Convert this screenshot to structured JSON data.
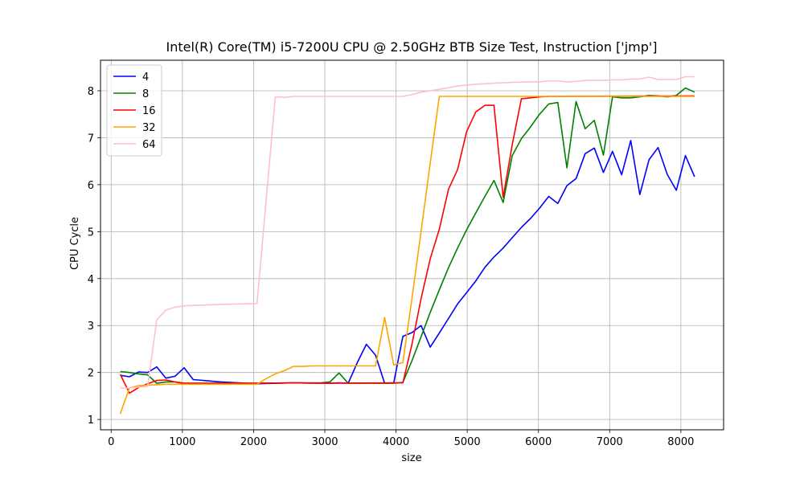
{
  "chart_data": {
    "type": "line",
    "title": "Intel(R) Core(TM) i5-7200U CPU @ 2.50GHz BTB Size Test, Instruction ['jmp']",
    "xlabel": "size",
    "ylabel": "CPU Cycle",
    "xlim": [
      -150,
      8600
    ],
    "ylim": [
      0.78,
      8.65
    ],
    "xticks": [
      0,
      1000,
      2000,
      3000,
      4000,
      5000,
      6000,
      7000,
      8000
    ],
    "yticks": [
      1,
      2,
      3,
      4,
      5,
      6,
      7,
      8
    ],
    "grid": true,
    "legend_position": "top-left",
    "series": [
      {
        "name": "4",
        "color": "#0000ff",
        "points": [
          [
            128,
            1.94
          ],
          [
            256,
            1.91
          ],
          [
            384,
            2.01
          ],
          [
            512,
            2.0
          ],
          [
            640,
            2.12
          ],
          [
            768,
            1.88
          ],
          [
            896,
            1.92
          ],
          [
            1024,
            2.1
          ],
          [
            1152,
            1.85
          ],
          [
            1536,
            1.8
          ],
          [
            2048,
            1.76
          ],
          [
            2560,
            1.78
          ],
          [
            3072,
            1.77
          ],
          [
            3200,
            1.78
          ],
          [
            3328,
            1.77
          ],
          [
            3456,
            2.21
          ],
          [
            3584,
            2.6
          ],
          [
            3712,
            2.37
          ],
          [
            3840,
            1.77
          ],
          [
            3968,
            1.78
          ],
          [
            4096,
            2.77
          ],
          [
            4224,
            2.85
          ],
          [
            4352,
            3.0
          ],
          [
            4480,
            2.54
          ],
          [
            4608,
            2.84
          ],
          [
            4736,
            3.15
          ],
          [
            4864,
            3.46
          ],
          [
            4992,
            3.7
          ],
          [
            5120,
            3.95
          ],
          [
            5248,
            4.24
          ],
          [
            5376,
            4.46
          ],
          [
            5504,
            4.65
          ],
          [
            5632,
            4.87
          ],
          [
            5760,
            5.09
          ],
          [
            5888,
            5.28
          ],
          [
            6016,
            5.5
          ],
          [
            6144,
            5.75
          ],
          [
            6272,
            5.6
          ],
          [
            6400,
            5.98
          ],
          [
            6528,
            6.13
          ],
          [
            6656,
            6.66
          ],
          [
            6784,
            6.78
          ],
          [
            6912,
            6.26
          ],
          [
            7040,
            6.71
          ],
          [
            7168,
            6.21
          ],
          [
            7296,
            6.94
          ],
          [
            7424,
            5.79
          ],
          [
            7552,
            6.53
          ],
          [
            7680,
            6.79
          ],
          [
            7808,
            6.22
          ],
          [
            7936,
            5.88
          ],
          [
            8064,
            6.62
          ],
          [
            8192,
            6.17
          ]
        ]
      },
      {
        "name": "8",
        "color": "#008000",
        "points": [
          [
            128,
            2.02
          ],
          [
            256,
            2.0
          ],
          [
            384,
            1.97
          ],
          [
            512,
            1.95
          ],
          [
            640,
            1.77
          ],
          [
            768,
            1.8
          ],
          [
            896,
            1.8
          ],
          [
            1024,
            1.77
          ],
          [
            2048,
            1.77
          ],
          [
            2560,
            1.78
          ],
          [
            2944,
            1.78
          ],
          [
            3072,
            1.8
          ],
          [
            3200,
            1.99
          ],
          [
            3328,
            1.77
          ],
          [
            3968,
            1.77
          ],
          [
            4096,
            1.79
          ],
          [
            4224,
            2.25
          ],
          [
            4352,
            2.76
          ],
          [
            4480,
            3.28
          ],
          [
            4608,
            3.76
          ],
          [
            4736,
            4.23
          ],
          [
            4864,
            4.65
          ],
          [
            4992,
            5.04
          ],
          [
            5120,
            5.4
          ],
          [
            5248,
            5.75
          ],
          [
            5376,
            6.09
          ],
          [
            5504,
            5.62
          ],
          [
            5632,
            6.62
          ],
          [
            5760,
            6.98
          ],
          [
            5888,
            7.23
          ],
          [
            6016,
            7.5
          ],
          [
            6144,
            7.72
          ],
          [
            6272,
            7.75
          ],
          [
            6400,
            6.36
          ],
          [
            6528,
            7.77
          ],
          [
            6656,
            7.19
          ],
          [
            6784,
            7.37
          ],
          [
            6912,
            6.63
          ],
          [
            7040,
            7.87
          ],
          [
            7168,
            7.85
          ],
          [
            7296,
            7.85
          ],
          [
            7424,
            7.87
          ],
          [
            7552,
            7.9
          ],
          [
            7680,
            7.89
          ],
          [
            7808,
            7.87
          ],
          [
            7936,
            7.9
          ],
          [
            8064,
            8.06
          ],
          [
            8192,
            7.97
          ]
        ]
      },
      {
        "name": "16",
        "color": "#ff0000",
        "points": [
          [
            128,
            1.96
          ],
          [
            256,
            1.56
          ],
          [
            384,
            1.68
          ],
          [
            512,
            1.76
          ],
          [
            640,
            1.83
          ],
          [
            768,
            1.84
          ],
          [
            896,
            1.8
          ],
          [
            1024,
            1.77
          ],
          [
            2048,
            1.77
          ],
          [
            2560,
            1.78
          ],
          [
            3072,
            1.77
          ],
          [
            3968,
            1.78
          ],
          [
            4096,
            1.78
          ],
          [
            4224,
            2.6
          ],
          [
            4352,
            3.57
          ],
          [
            4480,
            4.42
          ],
          [
            4608,
            5.05
          ],
          [
            4736,
            5.9
          ],
          [
            4864,
            6.32
          ],
          [
            4992,
            7.13
          ],
          [
            5120,
            7.55
          ],
          [
            5248,
            7.69
          ],
          [
            5376,
            7.69
          ],
          [
            5504,
            5.73
          ],
          [
            5632,
            6.85
          ],
          [
            5760,
            7.83
          ],
          [
            5888,
            7.85
          ],
          [
            6016,
            7.87
          ],
          [
            6144,
            7.88
          ],
          [
            6272,
            7.88
          ],
          [
            8192,
            7.89
          ]
        ]
      },
      {
        "name": "32",
        "color": "#ffa500",
        "points": [
          [
            128,
            1.12
          ],
          [
            256,
            1.67
          ],
          [
            384,
            1.72
          ],
          [
            512,
            1.73
          ],
          [
            640,
            1.74
          ],
          [
            768,
            1.75
          ],
          [
            1024,
            1.75
          ],
          [
            2048,
            1.75
          ],
          [
            2176,
            1.87
          ],
          [
            2304,
            1.97
          ],
          [
            2432,
            2.04
          ],
          [
            2560,
            2.13
          ],
          [
            2688,
            2.13
          ],
          [
            2816,
            2.14
          ],
          [
            3072,
            2.14
          ],
          [
            3328,
            2.14
          ],
          [
            3456,
            2.14
          ],
          [
            3584,
            2.14
          ],
          [
            3712,
            2.14
          ],
          [
            3840,
            3.17
          ],
          [
            3968,
            2.16
          ],
          [
            4096,
            2.21
          ],
          [
            4224,
            3.58
          ],
          [
            4352,
            5.0
          ],
          [
            4480,
            6.46
          ],
          [
            4608,
            7.88
          ],
          [
            4736,
            7.88
          ],
          [
            8192,
            7.88
          ]
        ]
      },
      {
        "name": "64",
        "color": "#ffc0cb",
        "points": [
          [
            128,
            1.67
          ],
          [
            256,
            1.67
          ],
          [
            384,
            1.69
          ],
          [
            512,
            1.7
          ],
          [
            640,
            3.12
          ],
          [
            768,
            3.33
          ],
          [
            896,
            3.39
          ],
          [
            1024,
            3.42
          ],
          [
            1536,
            3.45
          ],
          [
            2048,
            3.47
          ],
          [
            2304,
            7.87
          ],
          [
            2432,
            7.86
          ],
          [
            2560,
            7.88
          ],
          [
            2688,
            7.88
          ],
          [
            3072,
            7.88
          ],
          [
            3584,
            7.88
          ],
          [
            4096,
            7.88
          ],
          [
            4224,
            7.92
          ],
          [
            4352,
            7.97
          ],
          [
            4608,
            8.03
          ],
          [
            4864,
            8.1
          ],
          [
            5120,
            8.14
          ],
          [
            5376,
            8.16
          ],
          [
            5632,
            8.18
          ],
          [
            5888,
            8.19
          ],
          [
            6016,
            8.19
          ],
          [
            6144,
            8.21
          ],
          [
            6272,
            8.21
          ],
          [
            6400,
            8.19
          ],
          [
            6528,
            8.2
          ],
          [
            6656,
            8.22
          ],
          [
            6912,
            8.22
          ],
          [
            7040,
            8.23
          ],
          [
            7168,
            8.23
          ],
          [
            7296,
            8.25
          ],
          [
            7424,
            8.25
          ],
          [
            7552,
            8.29
          ],
          [
            7680,
            8.24
          ],
          [
            7808,
            8.24
          ],
          [
            7936,
            8.24
          ],
          [
            8064,
            8.3
          ],
          [
            8192,
            8.3
          ]
        ]
      }
    ]
  }
}
